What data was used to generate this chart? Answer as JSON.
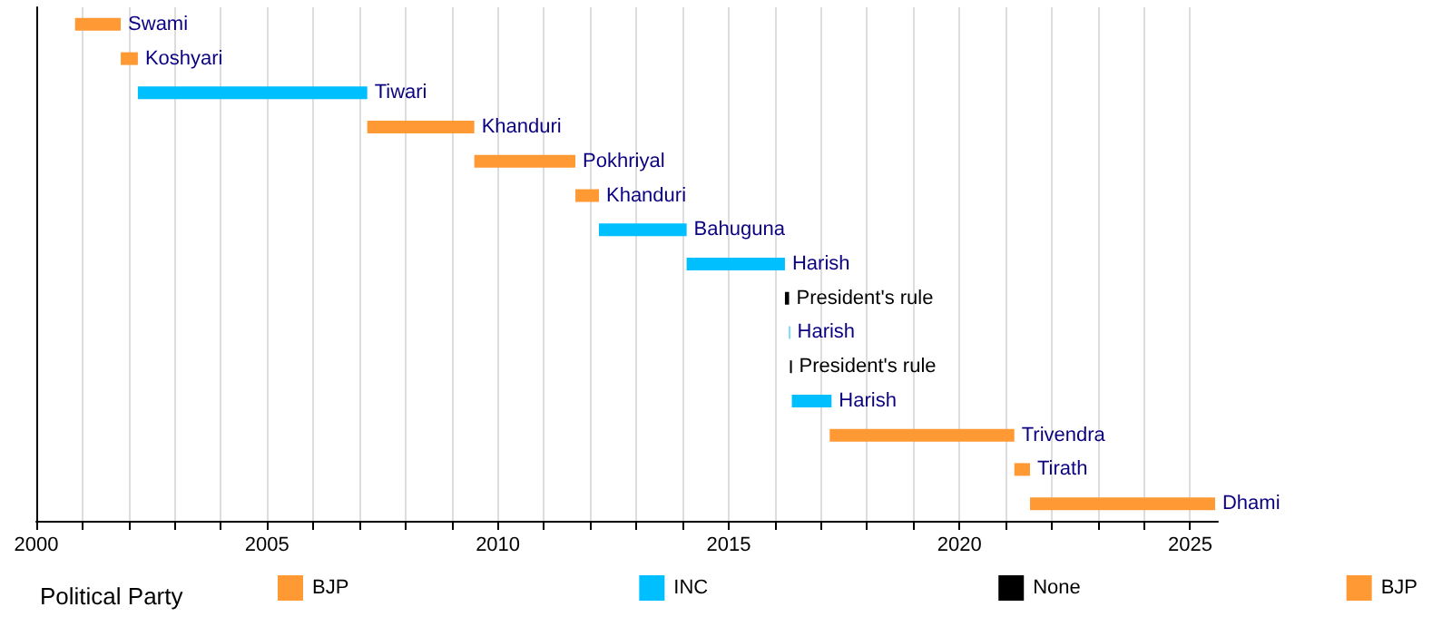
{
  "chart_data": {
    "type": "bar",
    "orientation": "horizontal",
    "legend_title": "Political Party",
    "categories": [
      null,
      null,
      null,
      null,
      null,
      null,
      null,
      null,
      null,
      null,
      null,
      null,
      null,
      null,
      null
    ],
    "series": [
      {
        "name": "BJP",
        "color": "#ff9933",
        "base": [
          2000.84,
          2001.83,
          null,
          2007.17,
          2009.49,
          2011.68,
          null,
          null,
          null,
          null,
          null,
          null,
          2017.19,
          2021.19,
          2021.53
        ],
        "values": [
          0.99,
          0.37,
          null,
          2.32,
          2.19,
          0.51,
          null,
          null,
          null,
          null,
          null,
          null,
          4.0,
          0.34,
          4.01
        ],
        "value_labels": [
          "Swami",
          "Koshyari",
          null,
          "Khanduri",
          "Pokhriyal",
          "Khanduri",
          null,
          null,
          null,
          null,
          null,
          null,
          "Trivendra",
          "Tirath",
          "Dhami"
        ]
      },
      {
        "name": "INC",
        "color": "#00bfff",
        "base": [
          null,
          null,
          2002.2,
          null,
          null,
          null,
          2012.19,
          2014.09,
          null,
          2016.31,
          null,
          2016.37,
          null,
          null,
          null
        ],
        "values": [
          null,
          null,
          4.97,
          null,
          null,
          null,
          1.9,
          2.13,
          null,
          0.02,
          null,
          0.86,
          null,
          null,
          null
        ],
        "value_labels": [
          null,
          null,
          "Tiwari",
          null,
          null,
          null,
          "Bahuguna",
          "Harish",
          null,
          "Harish",
          null,
          "Harish",
          null,
          null,
          null
        ]
      },
      {
        "name": "None",
        "color": "#000000",
        "base": [
          null,
          null,
          null,
          null,
          null,
          null,
          null,
          null,
          2016.22,
          null,
          2016.33,
          null,
          null,
          null,
          null
        ],
        "values": [
          null,
          null,
          null,
          null,
          null,
          null,
          null,
          null,
          0.09,
          null,
          0.04,
          null,
          null,
          null,
          null
        ],
        "value_labels": [
          null,
          null,
          null,
          null,
          null,
          null,
          null,
          null,
          "President's rule",
          null,
          "President's rule",
          null,
          null,
          null,
          null
        ]
      },
      {
        "name": "BJP",
        "color": "#ff9933",
        "values": [
          null,
          null,
          null,
          null,
          null,
          null,
          null,
          null,
          null,
          null,
          null,
          null,
          null,
          null,
          null
        ]
      }
    ],
    "xlim": [
      2000,
      2025.6
    ],
    "xticks": [
      2000,
      {
        "value": 2001,
        "label": null
      },
      {
        "value": 2002,
        "label": null
      },
      {
        "value": 2003,
        "label": null
      },
      {
        "value": 2004,
        "label": null
      },
      2005,
      {
        "value": 2006,
        "label": null
      },
      {
        "value": 2007,
        "label": null
      },
      {
        "value": 2008,
        "label": null
      },
      {
        "value": 2009,
        "label": null
      },
      2010,
      {
        "value": 2011,
        "label": null
      },
      {
        "value": 2012,
        "label": null
      },
      {
        "value": 2013,
        "label": null
      },
      {
        "value": 2014,
        "label": null
      },
      2015,
      {
        "value": 2016,
        "label": null
      },
      {
        "value": 2017,
        "label": null
      },
      {
        "value": 2018,
        "label": null
      },
      {
        "value": 2019,
        "label": null
      },
      2020,
      {
        "value": 2021,
        "label": null
      },
      {
        "value": 2022,
        "label": null
      },
      {
        "value": 2023,
        "label": null
      },
      {
        "value": 2024,
        "label": null
      },
      2025
    ],
    "grid": "x",
    "legend": "bottom"
  }
}
